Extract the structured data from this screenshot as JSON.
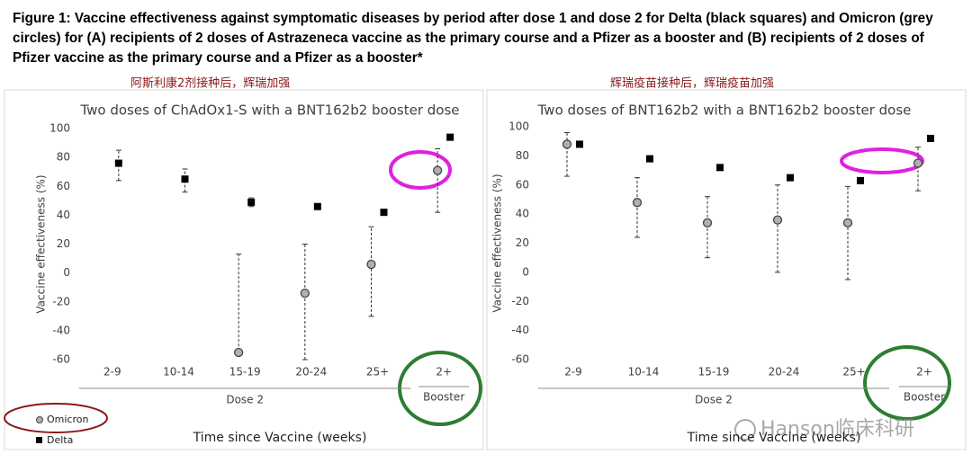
{
  "figure": {
    "caption": "Figure 1: Vaccine effectiveness against symptomatic diseases by period after dose 1 and dose 2 for Delta (black squares) and Omicron (grey circles) for (A) recipients of 2 doses of Astrazeneca vaccine as the primary course and a Pfizer as a booster and (B) recipients of 2 doses of Pfizer vaccine as the primary course and a Pfizer as a booster*",
    "annotations": [
      "阿斯利康2剂接种后，辉瑞加强",
      "辉瑞疫苗接种后，辉瑞疫苗加强"
    ],
    "watermark": "Hanson临床科研"
  },
  "chart_data": [
    {
      "type": "scatter",
      "title": "Two doses of ChAdOx1-S with a BNT162b2 booster dose",
      "ylabel": "Vaccine effectiveness (%)",
      "xlabel": "Time since Vaccine (weeks)",
      "categories": [
        "2-9",
        "10-14",
        "15-19",
        "20-24",
        "25+",
        "2+"
      ],
      "groups": [
        "Dose 2",
        "Booster"
      ],
      "series": [
        {
          "name": "Omicron",
          "color": "#b0b0b0",
          "marker": "circle",
          "values": [
            null,
            null,
            -55,
            -14,
            6,
            71
          ],
          "lower": [
            null,
            null,
            -57,
            -60,
            -30,
            42
          ],
          "upper": [
            null,
            null,
            13,
            20,
            32,
            86
          ]
        },
        {
          "name": "Delta",
          "color": "#000000",
          "marker": "square",
          "values": [
            76,
            65,
            49,
            46,
            42,
            94
          ],
          "lower": [
            64,
            56,
            46,
            null,
            null,
            null
          ],
          "upper": [
            85,
            72,
            52,
            null,
            null,
            null
          ]
        }
      ],
      "ylim": [
        -60,
        100
      ],
      "yticks": [
        -60,
        -40,
        -20,
        0,
        20,
        40,
        60,
        80,
        100
      ],
      "legend": true
    },
    {
      "type": "scatter",
      "title": "Two doses of BNT162b2 with a BNT162b2 booster dose",
      "ylabel": "Vaccine effectiveness (%)",
      "xlabel": "Time since Vaccine (weeks)",
      "categories": [
        "2-9",
        "10-14",
        "15-19",
        "20-24",
        "25+",
        "2+"
      ],
      "groups": [
        "Dose 2",
        "Booster"
      ],
      "series": [
        {
          "name": "Omicron",
          "color": "#b0b0b0",
          "marker": "circle",
          "values": [
            88,
            48,
            34,
            36,
            34,
            75
          ],
          "lower": [
            66,
            24,
            10,
            0,
            -5,
            56
          ],
          "upper": [
            96,
            65,
            52,
            60,
            59,
            86
          ]
        },
        {
          "name": "Delta",
          "color": "#000000",
          "marker": "square",
          "values": [
            88,
            78,
            72,
            65,
            63,
            92
          ],
          "lower": [
            null,
            null,
            null,
            null,
            null,
            null
          ],
          "upper": [
            null,
            null,
            null,
            null,
            null,
            null
          ]
        }
      ],
      "ylim": [
        -60,
        100
      ],
      "yticks": [
        -60,
        -40,
        -20,
        0,
        20,
        40,
        60,
        80,
        100
      ],
      "legend": false
    }
  ]
}
